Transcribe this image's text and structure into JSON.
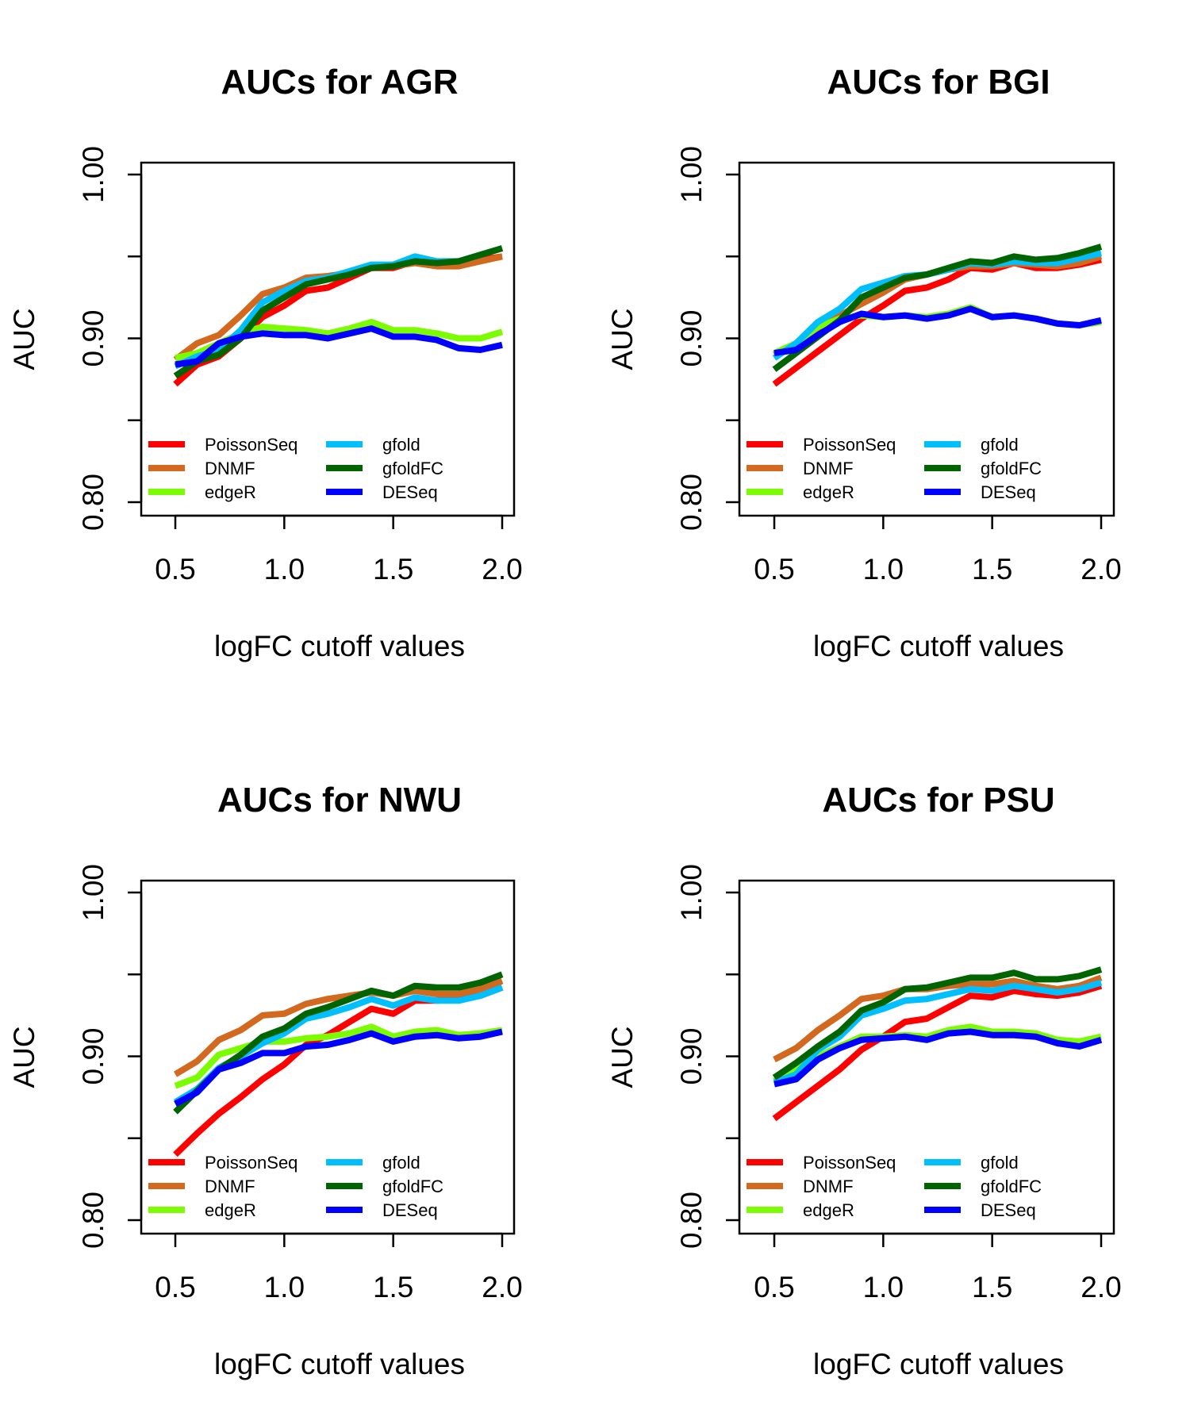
{
  "x": [
    0.5,
    0.6,
    0.7,
    0.8,
    0.9,
    1.0,
    1.1,
    1.2,
    1.3,
    1.4,
    1.5,
    1.6,
    1.7,
    1.8,
    1.9,
    2.0
  ],
  "colors": {
    "PoissonSeq": "#ff0000",
    "DNMF": "#d2691e",
    "edgeR": "#7cfc00",
    "gfold": "#00bfff",
    "gfoldFC": "#006400",
    "DESeq": "#0000ff"
  },
  "chart_data": [
    {
      "type": "line",
      "title": "AUCs for AGR",
      "xlabel": "logFC cutoff values",
      "ylabel": "AUC",
      "xlim": [
        0.5,
        2.0
      ],
      "ylim": [
        0.8,
        1.0
      ],
      "x_ticks": [
        "0.5",
        "1.0",
        "1.5",
        "2.0"
      ],
      "y_ticks": [
        "0.80",
        "0.90",
        "1.00"
      ],
      "legend_position": "bottom-left",
      "series": [
        {
          "name": "PoissonSeq",
          "values": [
            0.872,
            0.884,
            0.889,
            0.9,
            0.913,
            0.92,
            0.929,
            0.931,
            0.937,
            0.943,
            0.943,
            0.947,
            0.946,
            0.946,
            0.948,
            0.95
          ]
        },
        {
          "name": "DNMF",
          "values": [
            0.887,
            0.897,
            0.902,
            0.914,
            0.927,
            0.931,
            0.937,
            0.938,
            0.94,
            0.943,
            0.944,
            0.946,
            0.944,
            0.944,
            0.947,
            0.95
          ]
        },
        {
          "name": "edgeR",
          "values": [
            0.888,
            0.891,
            0.897,
            0.903,
            0.907,
            0.906,
            0.905,
            0.903,
            0.906,
            0.91,
            0.905,
            0.905,
            0.903,
            0.9,
            0.9,
            0.904
          ]
        },
        {
          "name": "gfold",
          "values": [
            0.883,
            0.889,
            0.893,
            0.905,
            0.922,
            0.929,
            0.935,
            0.937,
            0.941,
            0.945,
            0.945,
            0.95,
            0.947,
            0.947,
            0.951,
            0.955
          ]
        },
        {
          "name": "gfoldFC",
          "values": [
            0.877,
            0.886,
            0.89,
            0.9,
            0.917,
            0.925,
            0.933,
            0.936,
            0.939,
            0.943,
            0.944,
            0.947,
            0.946,
            0.947,
            0.951,
            0.955
          ]
        },
        {
          "name": "DESeq",
          "values": [
            0.884,
            0.886,
            0.897,
            0.901,
            0.903,
            0.902,
            0.902,
            0.9,
            0.903,
            0.906,
            0.901,
            0.901,
            0.899,
            0.894,
            0.893,
            0.896
          ]
        }
      ]
    },
    {
      "type": "line",
      "title": "AUCs for BGI",
      "xlabel": "logFC cutoff values",
      "ylabel": "AUC",
      "xlim": [
        0.5,
        2.0
      ],
      "ylim": [
        0.8,
        1.0
      ],
      "x_ticks": [
        "0.5",
        "1.0",
        "1.5",
        "2.0"
      ],
      "y_ticks": [
        "0.80",
        "0.90",
        "1.00"
      ],
      "legend_position": "bottom-left",
      "series": [
        {
          "name": "PoissonSeq",
          "values": [
            0.872,
            0.882,
            0.892,
            0.902,
            0.912,
            0.92,
            0.929,
            0.931,
            0.936,
            0.943,
            0.942,
            0.946,
            0.943,
            0.943,
            0.945,
            0.948
          ]
        },
        {
          "name": "DNMF",
          "values": [
            0.89,
            0.897,
            0.906,
            0.914,
            0.921,
            0.928,
            0.936,
            0.939,
            0.942,
            0.944,
            0.944,
            0.946,
            0.945,
            0.944,
            0.946,
            0.95
          ]
        },
        {
          "name": "edgeR",
          "values": [
            0.891,
            0.897,
            0.907,
            0.912,
            0.914,
            0.913,
            0.914,
            0.913,
            0.915,
            0.919,
            0.913,
            0.914,
            0.912,
            0.909,
            0.908,
            0.91
          ]
        },
        {
          "name": "gfold",
          "values": [
            0.888,
            0.897,
            0.91,
            0.918,
            0.93,
            0.934,
            0.938,
            0.939,
            0.942,
            0.946,
            0.945,
            0.947,
            0.946,
            0.946,
            0.949,
            0.952
          ]
        },
        {
          "name": "gfoldFC",
          "values": [
            0.881,
            0.891,
            0.901,
            0.911,
            0.925,
            0.931,
            0.937,
            0.939,
            0.943,
            0.947,
            0.946,
            0.95,
            0.948,
            0.949,
            0.952,
            0.956
          ]
        },
        {
          "name": "DESeq",
          "values": [
            0.891,
            0.893,
            0.902,
            0.91,
            0.915,
            0.913,
            0.914,
            0.912,
            0.914,
            0.918,
            0.913,
            0.914,
            0.912,
            0.909,
            0.908,
            0.911
          ]
        }
      ]
    },
    {
      "type": "line",
      "title": "AUCs for NWU",
      "xlabel": "logFC cutoff values",
      "ylabel": "AUC",
      "xlim": [
        0.5,
        2.0
      ],
      "ylim": [
        0.8,
        1.0
      ],
      "x_ticks": [
        "0.5",
        "1.0",
        "1.5",
        "2.0"
      ],
      "y_ticks": [
        "0.80",
        "0.90",
        "1.00"
      ],
      "legend_position": "bottom-left",
      "series": [
        {
          "name": "PoissonSeq",
          "values": [
            0.84,
            0.853,
            0.865,
            0.875,
            0.886,
            0.895,
            0.907,
            0.913,
            0.921,
            0.929,
            0.926,
            0.934,
            0.934,
            0.935,
            0.937,
            0.942
          ]
        },
        {
          "name": "DNMF",
          "values": [
            0.889,
            0.897,
            0.91,
            0.916,
            0.925,
            0.926,
            0.932,
            0.935,
            0.937,
            0.939,
            0.937,
            0.94,
            0.938,
            0.938,
            0.941,
            0.946
          ]
        },
        {
          "name": "edgeR",
          "values": [
            0.882,
            0.887,
            0.901,
            0.905,
            0.909,
            0.909,
            0.911,
            0.912,
            0.914,
            0.918,
            0.912,
            0.915,
            0.916,
            0.913,
            0.914,
            0.916
          ]
        },
        {
          "name": "gfold",
          "values": [
            0.872,
            0.88,
            0.893,
            0.9,
            0.908,
            0.914,
            0.923,
            0.926,
            0.93,
            0.935,
            0.931,
            0.936,
            0.934,
            0.934,
            0.937,
            0.942
          ]
        },
        {
          "name": "gfoldFC",
          "values": [
            0.866,
            0.879,
            0.892,
            0.901,
            0.912,
            0.917,
            0.926,
            0.93,
            0.935,
            0.94,
            0.937,
            0.943,
            0.942,
            0.942,
            0.945,
            0.95
          ]
        },
        {
          "name": "DESeq",
          "values": [
            0.871,
            0.878,
            0.892,
            0.896,
            0.902,
            0.902,
            0.906,
            0.907,
            0.91,
            0.914,
            0.909,
            0.912,
            0.913,
            0.911,
            0.912,
            0.915
          ]
        }
      ]
    },
    {
      "type": "line",
      "title": "AUCs for PSU",
      "xlabel": "logFC cutoff values",
      "ylabel": "AUC",
      "xlim": [
        0.5,
        2.0
      ],
      "ylim": [
        0.8,
        1.0
      ],
      "x_ticks": [
        "0.5",
        "1.0",
        "1.5",
        "2.0"
      ],
      "y_ticks": [
        "0.80",
        "0.90",
        "1.00"
      ],
      "legend_position": "bottom-left",
      "series": [
        {
          "name": "PoissonSeq",
          "values": [
            0.862,
            0.872,
            0.882,
            0.892,
            0.904,
            0.912,
            0.921,
            0.923,
            0.93,
            0.937,
            0.936,
            0.94,
            0.938,
            0.937,
            0.939,
            0.943
          ]
        },
        {
          "name": "DNMF",
          "values": [
            0.898,
            0.905,
            0.916,
            0.925,
            0.935,
            0.937,
            0.941,
            0.941,
            0.943,
            0.944,
            0.944,
            0.946,
            0.943,
            0.941,
            0.943,
            0.948
          ]
        },
        {
          "name": "edgeR",
          "values": [
            0.885,
            0.892,
            0.9,
            0.906,
            0.912,
            0.912,
            0.913,
            0.912,
            0.916,
            0.918,
            0.915,
            0.915,
            0.914,
            0.91,
            0.909,
            0.912
          ]
        },
        {
          "name": "gfold",
          "values": [
            0.884,
            0.889,
            0.904,
            0.912,
            0.925,
            0.929,
            0.934,
            0.935,
            0.938,
            0.941,
            0.94,
            0.943,
            0.941,
            0.939,
            0.941,
            0.945
          ]
        },
        {
          "name": "gfoldFC",
          "values": [
            0.887,
            0.896,
            0.906,
            0.915,
            0.928,
            0.933,
            0.941,
            0.942,
            0.945,
            0.948,
            0.948,
            0.951,
            0.947,
            0.947,
            0.949,
            0.953
          ]
        },
        {
          "name": "DESeq",
          "values": [
            0.883,
            0.886,
            0.898,
            0.905,
            0.91,
            0.911,
            0.912,
            0.91,
            0.914,
            0.915,
            0.913,
            0.913,
            0.912,
            0.908,
            0.906,
            0.91
          ]
        }
      ]
    }
  ]
}
